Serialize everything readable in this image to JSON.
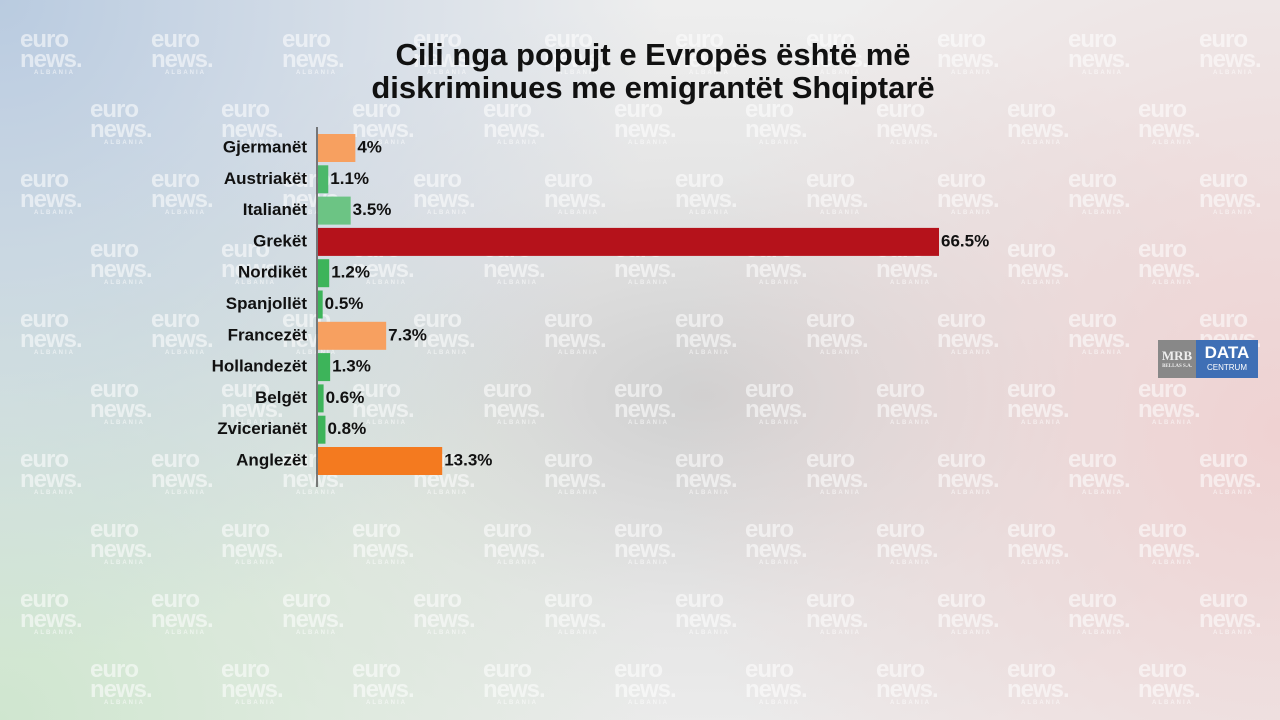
{
  "chart_data": {
    "type": "hbar",
    "title": "Cili nga popujt e Evropës është më diskriminues me emigrantët Shqiptarë",
    "categories": [
      "Gjermanët",
      "Austriakët",
      "Italianët",
      "Grekët",
      "Nordikët",
      "Spanjollët",
      "Francezët",
      "Hollandezët",
      "Belgët",
      "Zvicerianët",
      "Anglezët"
    ],
    "values": [
      4,
      1.1,
      3.5,
      66.5,
      1.2,
      0.5,
      7.3,
      1.3,
      0.6,
      0.8,
      13.3
    ],
    "value_labels": [
      "4%",
      "1.1%",
      "3.5%",
      "66.5%",
      "1.2%",
      "0.5%",
      "7.3%",
      "1.3%",
      "0.6%",
      "0.8%",
      "13.3%"
    ],
    "colors": [
      "#f7a060",
      "#4cb86a",
      "#6cc484",
      "#b5121b",
      "#3db45a",
      "#3db45a",
      "#f7a060",
      "#3db45a",
      "#3db45a",
      "#3db45a",
      "#f47a1f"
    ]
  },
  "logo": {
    "left": "MRB",
    "left_sub": "BELLAS S.A.",
    "right": "DATA",
    "right_sub": "CENTRUM"
  },
  "watermark": {
    "top": "euro",
    "bottom": "news.",
    "sub": "ALBANIA"
  }
}
